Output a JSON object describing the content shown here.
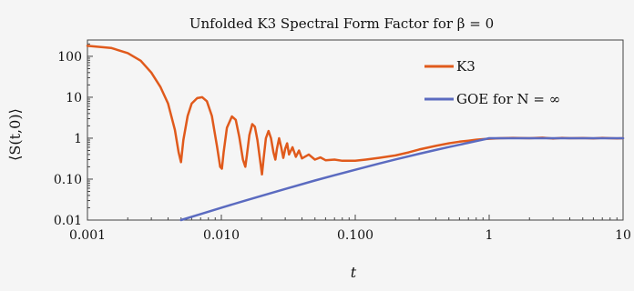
{
  "chart_data": {
    "type": "line",
    "title": "Unfolded K3 Spectral Form Factor for β = 0",
    "xlabel": "t",
    "ylabel": "⟨S(t,0)⟩",
    "x_scale": "log",
    "y_scale": "log",
    "xlim": [
      0.001,
      10
    ],
    "ylim": [
      0.01,
      250
    ],
    "x_ticks": [
      {
        "value": 0.001,
        "label": "0.001"
      },
      {
        "value": 0.01,
        "label": "0.010"
      },
      {
        "value": 0.1,
        "label": "0.100"
      },
      {
        "value": 1,
        "label": "1"
      },
      {
        "value": 10,
        "label": "10"
      }
    ],
    "y_ticks": [
      {
        "value": 100,
        "label": "100"
      },
      {
        "value": 10,
        "label": "10"
      },
      {
        "value": 1,
        "label": "1"
      },
      {
        "value": 0.1,
        "label": "0.10"
      },
      {
        "value": 0.01,
        "label": "0.01"
      }
    ],
    "legend_position": "top-right",
    "grid": false,
    "series": [
      {
        "name": "K3",
        "color": "#e05a1c",
        "x": [
          0.001,
          0.0015,
          0.002,
          0.0025,
          0.003,
          0.0035,
          0.004,
          0.0045,
          0.0048,
          0.005,
          0.0052,
          0.0056,
          0.006,
          0.0066,
          0.0072,
          0.0078,
          0.0085,
          0.0093,
          0.0098,
          0.0101,
          0.0104,
          0.011,
          0.012,
          0.0128,
          0.0136,
          0.0145,
          0.0151,
          0.0155,
          0.0162,
          0.017,
          0.0178,
          0.0186,
          0.0195,
          0.0201,
          0.0207,
          0.0215,
          0.0225,
          0.0235,
          0.0245,
          0.0253,
          0.026,
          0.027,
          0.028,
          0.029,
          0.03,
          0.031,
          0.032,
          0.034,
          0.036,
          0.038,
          0.04,
          0.045,
          0.05,
          0.055,
          0.06,
          0.07,
          0.08,
          0.09,
          0.1,
          0.12,
          0.15,
          0.2,
          0.25,
          0.3,
          0.4,
          0.5,
          0.6,
          0.7,
          0.8,
          0.9,
          1.0,
          1.2,
          1.5,
          2,
          2.5,
          3,
          3.5,
          4,
          5,
          6,
          7,
          8,
          9,
          10
        ],
        "y": [
          180,
          160,
          120,
          78,
          40,
          18,
          7,
          1.6,
          0.45,
          0.26,
          0.9,
          3.5,
          7,
          9.5,
          10,
          8,
          3.5,
          0.6,
          0.2,
          0.18,
          0.45,
          1.8,
          3.4,
          2.8,
          1.1,
          0.3,
          0.2,
          0.38,
          1.2,
          2.2,
          1.9,
          0.9,
          0.28,
          0.13,
          0.32,
          1.0,
          1.5,
          1.0,
          0.45,
          0.3,
          0.55,
          1.0,
          0.6,
          0.33,
          0.55,
          0.75,
          0.4,
          0.6,
          0.35,
          0.5,
          0.32,
          0.4,
          0.3,
          0.34,
          0.29,
          0.3,
          0.28,
          0.28,
          0.28,
          0.3,
          0.33,
          0.38,
          0.45,
          0.53,
          0.65,
          0.75,
          0.82,
          0.87,
          0.92,
          0.95,
          0.97,
          1.0,
          1.02,
          1.0,
          1.03,
          0.98,
          1.02,
          1.0,
          1.01,
          0.99,
          1.02,
          1.0,
          0.99,
          1.0
        ]
      },
      {
        "name": "GOE for N = ∞",
        "color": "#5b6bc0",
        "x": [
          0.005,
          0.007,
          0.01,
          0.015,
          0.02,
          0.03,
          0.05,
          0.07,
          0.1,
          0.15,
          0.2,
          0.3,
          0.4,
          0.5,
          0.6,
          0.7,
          0.8,
          0.9,
          1.0,
          1.5,
          2,
          3,
          5,
          10
        ],
        "y": [
          0.01,
          0.014,
          0.02,
          0.0297,
          0.0392,
          0.0576,
          0.0923,
          0.1245,
          0.1689,
          0.2392,
          0.3027,
          0.4159,
          0.5158,
          0.6066,
          0.6911,
          0.7711,
          0.8481,
          0.923,
          1.0,
          1.0,
          1.0,
          1.0,
          1.0,
          1.0
        ]
      }
    ]
  }
}
